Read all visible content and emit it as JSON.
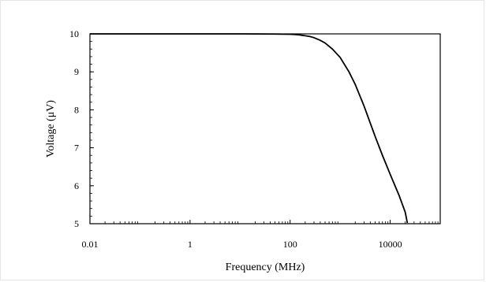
{
  "chart_data": {
    "type": "line",
    "xlabel": "Frequency (MHz)",
    "ylabel": "Voltage (μV)",
    "xscale": "log",
    "xlim": [
      0.01,
      100000
    ],
    "ylim": [
      5,
      10
    ],
    "xticks": [
      0.01,
      1,
      100,
      10000
    ],
    "xtick_labels": [
      "0.01",
      "1",
      "100",
      "10000"
    ],
    "yticks": [
      5,
      6,
      7,
      8,
      9,
      10
    ],
    "ytick_labels": [
      "5",
      "6",
      "7",
      "8",
      "9",
      "10"
    ],
    "grid": false,
    "series": [
      {
        "x": [
          0.01,
          1,
          10,
          50,
          100,
          120,
          150,
          200,
          250,
          300,
          400,
          500,
          700,
          1000,
          1500,
          2000,
          3000,
          4000,
          5000,
          7000,
          10000,
          15000,
          20000,
          22000
        ],
        "y": [
          10,
          10,
          10,
          9.995,
          9.99,
          9.985,
          9.975,
          9.95,
          9.93,
          9.9,
          9.83,
          9.76,
          9.6,
          9.38,
          9.0,
          8.67,
          8.1,
          7.65,
          7.3,
          6.8,
          6.3,
          5.75,
          5.3,
          5.02
        ]
      }
    ]
  }
}
